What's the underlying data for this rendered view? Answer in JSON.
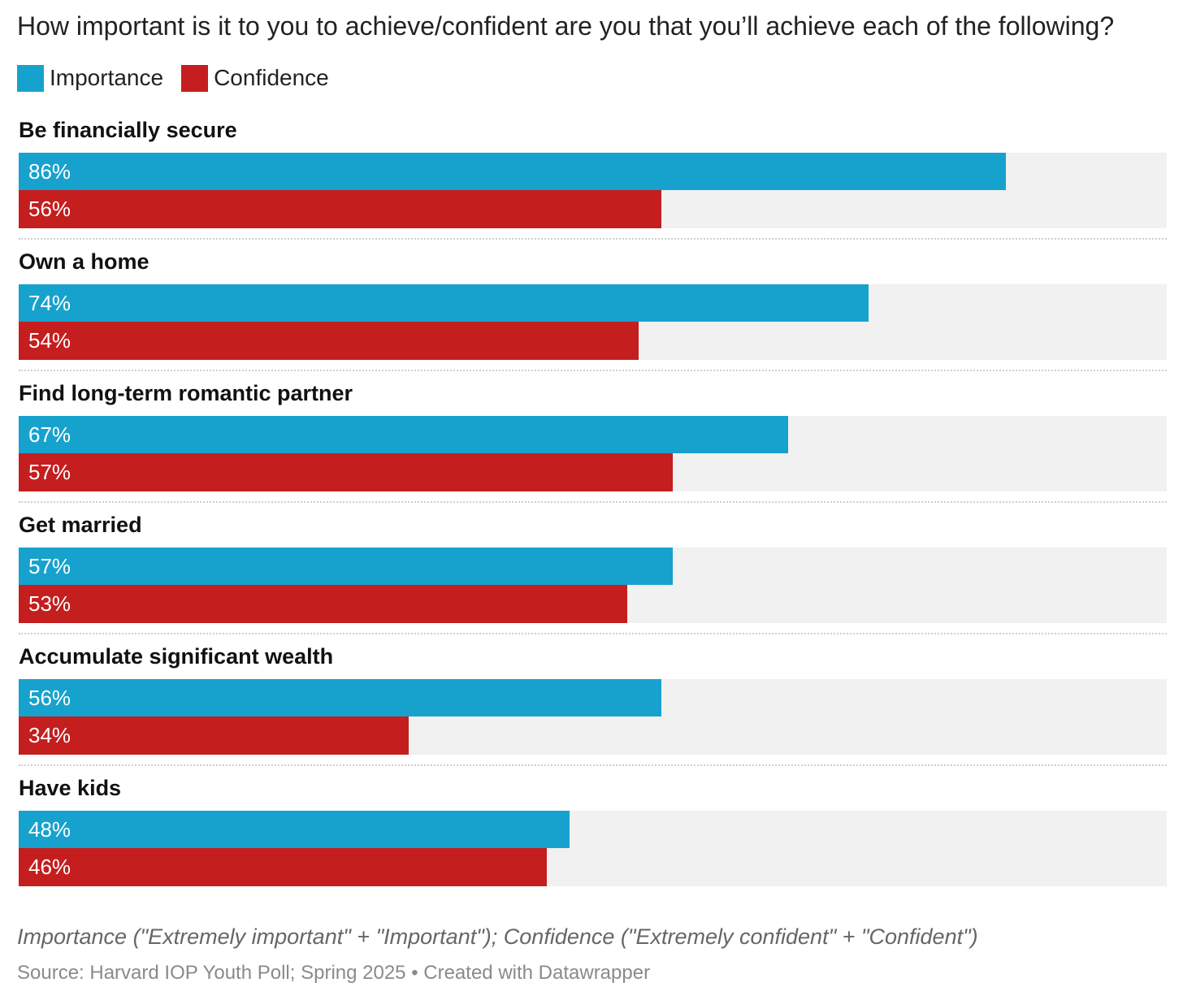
{
  "colors": {
    "importance": "#17a2cd",
    "confidence": "#c41e1e"
  },
  "chart_data": {
    "type": "bar",
    "orientation": "horizontal",
    "title": "How important is it to you to achieve/confident are you that you’ll achieve each of the following?",
    "legend": {
      "placement": "top-left",
      "entries": [
        "Importance",
        "Confidence"
      ]
    },
    "categories": [
      "Be financially secure",
      "Own a home",
      "Find long-term romantic partner",
      "Get married",
      "Accumulate significant wealth",
      "Have kids"
    ],
    "series": [
      {
        "name": "Importance",
        "values": [
          86,
          74,
          67,
          57,
          56,
          48
        ],
        "labels": [
          "86%",
          "74%",
          "67%",
          "57%",
          "56%",
          "48%"
        ]
      },
      {
        "name": "Confidence",
        "values": [
          56,
          54,
          57,
          53,
          34,
          46
        ],
        "labels": [
          "56%",
          "54%",
          "57%",
          "53%",
          "34%",
          "46%"
        ]
      }
    ],
    "xlim": [
      0,
      100
    ],
    "unit": "%",
    "note": "Importance (\"Extremely important\" + \"Important\"); Confidence (\"Extremely confident\" + \"Confident\")",
    "source": "Source: Harvard IOP Youth Poll; Spring 2025 • Created with Datawrapper"
  }
}
